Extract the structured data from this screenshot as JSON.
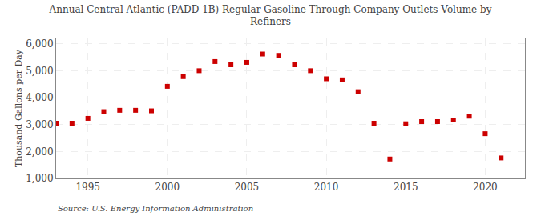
{
  "chart_data": {
    "type": "scatter",
    "title": "Annual Central Atlantic (PADD 1B) Regular Gasoline Through Company Outlets Volume by\nRefiners",
    "ylabel": "Thousand Gallons per Day",
    "annotations": [
      "Source: U.S. Energy Information Administration"
    ],
    "x": [
      1993,
      1994,
      1995,
      1996,
      1997,
      1998,
      1999,
      2000,
      2001,
      2002,
      2003,
      2004,
      2005,
      2006,
      2007,
      2008,
      2009,
      2010,
      2011,
      2012,
      2013,
      2014,
      2015,
      2016,
      2017,
      2018,
      2019,
      2020,
      2021
    ],
    "values": [
      3050,
      3050,
      3230,
      3480,
      3530,
      3530,
      3510,
      4420,
      4780,
      5000,
      5340,
      5220,
      5310,
      5620,
      5570,
      5220,
      5000,
      4700,
      4660,
      4220,
      3050,
      1720,
      3030,
      3110,
      3110,
      3170,
      3310,
      2660,
      1760
    ],
    "color": "#cc0000",
    "marker": "square",
    "xlim": [
      1993.0,
      2022.5
    ],
    "xticks": [
      1995,
      2000,
      2005,
      2010,
      2015,
      2020
    ],
    "ylim": [
      1000,
      6200
    ],
    "yticks": [
      {
        "value": 1000,
        "label": "1,000"
      },
      {
        "value": 2000,
        "label": "2,000"
      },
      {
        "value": 3000,
        "label": "3,000"
      },
      {
        "value": 4000,
        "label": "4,000"
      },
      {
        "value": 5000,
        "label": "5,000"
      },
      {
        "value": 6000,
        "label": "6,000"
      }
    ],
    "grid": true
  }
}
